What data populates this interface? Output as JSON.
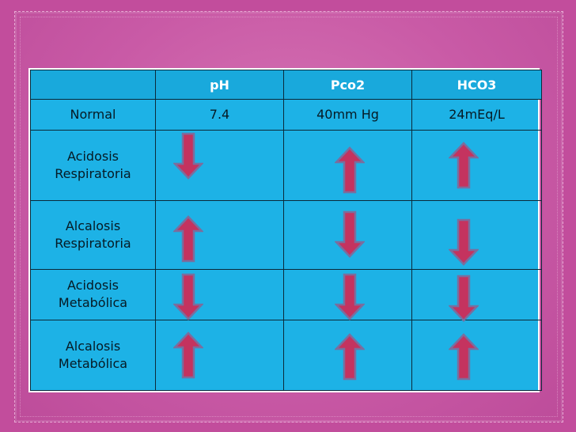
{
  "table": {
    "headers": [
      "",
      "pH",
      "Pco2",
      "HCO3"
    ],
    "normal": {
      "label": "Normal",
      "values": [
        "7.4",
        "40mm Hg",
        "24mEq/L"
      ]
    },
    "rows": [
      {
        "label_line1": "Acidosis",
        "label_line2": "Respiratoria",
        "arrows": [
          "down",
          "up",
          "up"
        ]
      },
      {
        "label_line1": "Alcalosis",
        "label_line2": "Respiratoria",
        "arrows": [
          "up",
          "down",
          "down"
        ]
      },
      {
        "label_line1": "Acidosis",
        "label_line2": "Metabólica",
        "arrows": [
          "down",
          "down",
          "down"
        ]
      },
      {
        "label_line1": "Alcalosis",
        "label_line2": "Metabólica",
        "arrows": [
          "up",
          "up",
          "up"
        ]
      }
    ]
  },
  "colors": {
    "background": "#c24d9c",
    "table_fill": "#1db2e6",
    "arrow_fill": "#c4335f",
    "arrow_stroke": "#7a6e9e"
  }
}
